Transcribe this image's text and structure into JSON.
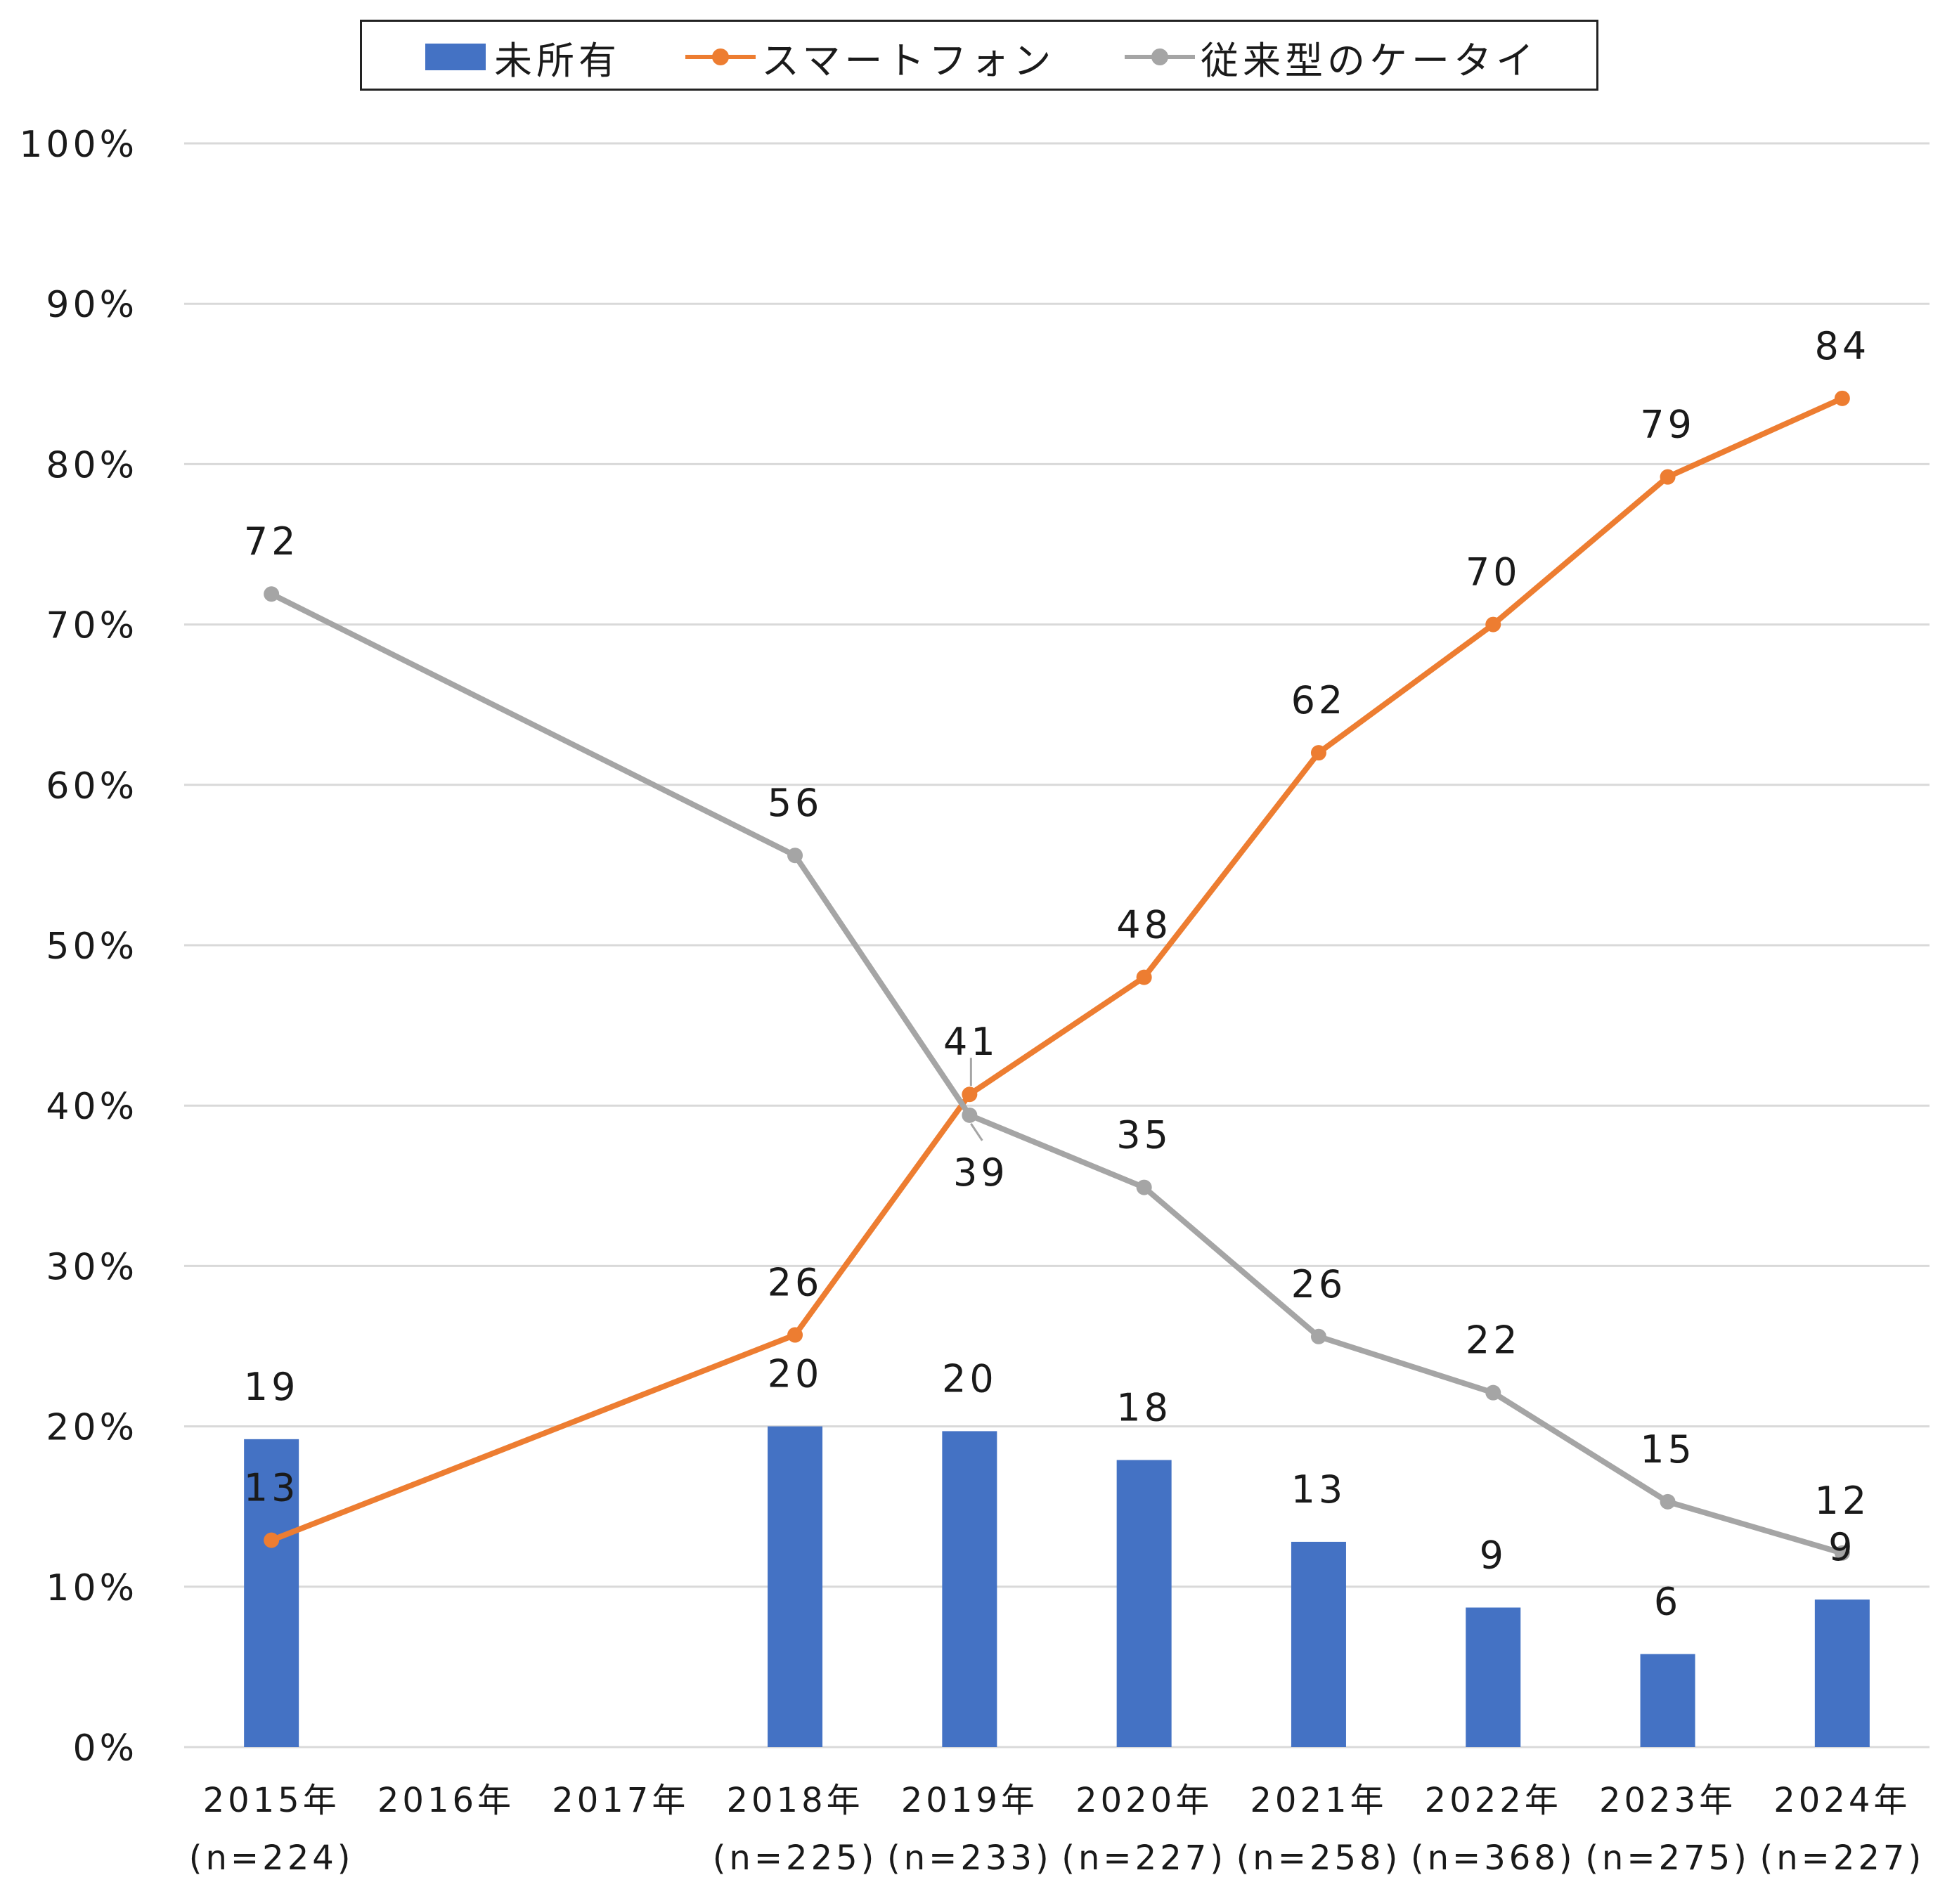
{
  "chart_data": {
    "type": "bar+line",
    "categories": [
      "2015年",
      "2016年",
      "2017年",
      "2018年",
      "2019年",
      "2020年",
      "2021年",
      "2022年",
      "2023年",
      "2024年"
    ],
    "category_sublabels": [
      "(n=224)",
      "",
      "",
      "(n=225)",
      "(n=233)",
      "(n=227)",
      "(n=258)",
      "(n=368)",
      "(n=275)",
      "(n=227)"
    ],
    "series": [
      {
        "name": "未所有",
        "kind": "bar",
        "color": "#4472C4",
        "values": [
          19.2,
          null,
          null,
          20.0,
          19.7,
          17.9,
          12.8,
          8.7,
          5.8,
          9.2
        ],
        "labels": [
          "19",
          "",
          "",
          "20",
          "20",
          "18",
          "13",
          "9",
          "6",
          "9"
        ]
      },
      {
        "name": "スマートフォン",
        "kind": "line",
        "color": "#ED7D31",
        "values": [
          12.9,
          null,
          null,
          25.7,
          40.7,
          48.0,
          62.0,
          70.0,
          79.2,
          84.1
        ],
        "labels": [
          "13",
          "",
          "",
          "26",
          "41",
          "48",
          "62",
          "70",
          "79",
          "84"
        ]
      },
      {
        "name": "従来型のケータイ",
        "kind": "line",
        "color": "#A5A5A5",
        "values": [
          71.9,
          null,
          null,
          55.6,
          39.4,
          34.9,
          25.6,
          22.1,
          15.3,
          12.1
        ],
        "labels": [
          "72",
          "",
          "",
          "56",
          "39",
          "35",
          "26",
          "22",
          "15",
          "12"
        ]
      }
    ],
    "y_ticks": [
      "0%",
      "10%",
      "20%",
      "30%",
      "40%",
      "50%",
      "60%",
      "70%",
      "80%",
      "90%",
      "100%"
    ],
    "ylim": [
      0,
      100
    ],
    "grid": true,
    "legend_position": "top"
  }
}
